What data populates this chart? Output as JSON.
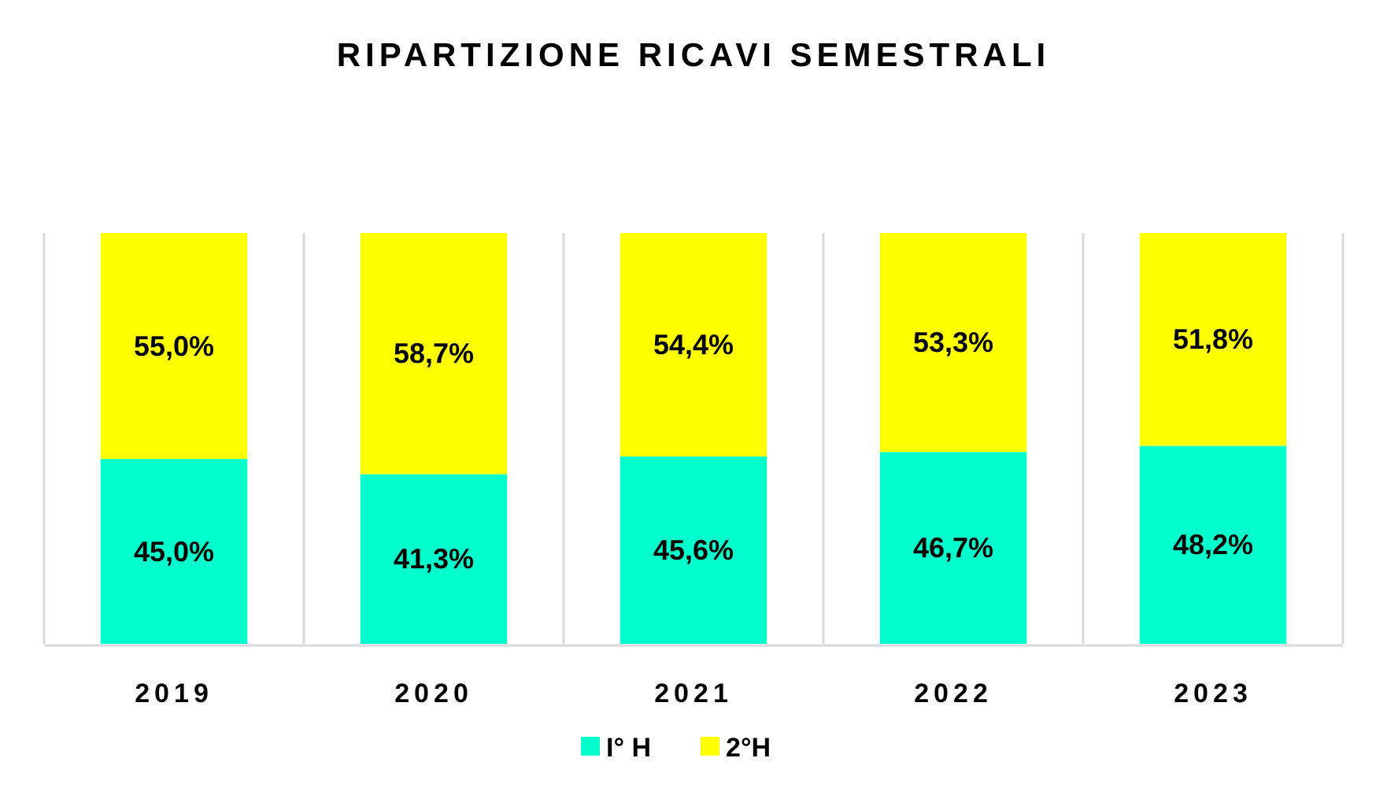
{
  "chart_data": {
    "type": "bar",
    "title": "RIPARTIZIONE RICAVI SEMESTRALI",
    "categories": [
      "2019",
      "2020",
      "2021",
      "2022",
      "2023"
    ],
    "series": [
      {
        "name": "I° H",
        "color": "#00ffcc",
        "values": [
          45.0,
          41.3,
          45.6,
          46.7,
          48.2
        ],
        "value_labels": [
          "45,0%",
          "41,3%",
          "45,6%",
          "46,7%",
          "48,2%"
        ]
      },
      {
        "name": "2°H",
        "color": "#ffff00",
        "values": [
          55.0,
          58.7,
          54.4,
          53.3,
          51.8
        ],
        "value_labels": [
          "55,0%",
          "58,7%",
          "54,4%",
          "53,3%",
          "51,8%"
        ]
      }
    ],
    "stacked": true,
    "ylim": [
      0,
      100
    ],
    "tick_labels": "x",
    "grid": "x",
    "legend": "bottom"
  }
}
